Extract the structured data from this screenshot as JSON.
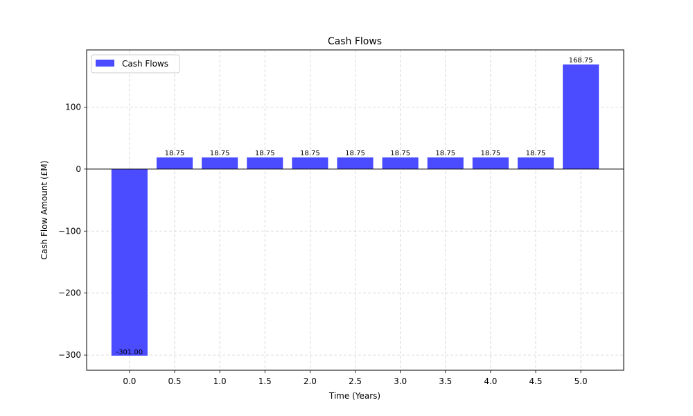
{
  "chart_data": {
    "type": "bar",
    "title": "Cash Flows",
    "xlabel": "Time (Years)",
    "ylabel": "Cash Flow Amount (£M)",
    "x": [
      0.0,
      0.5,
      1.0,
      1.5,
      2.0,
      2.5,
      3.0,
      3.5,
      4.0,
      4.5,
      5.0
    ],
    "x_tick_labels": [
      "0.0",
      "0.5",
      "1.0",
      "1.5",
      "2.0",
      "2.5",
      "3.0",
      "3.5",
      "4.0",
      "4.5",
      "5.0"
    ],
    "series": [
      {
        "name": "Cash Flows",
        "values": [
          -301.0,
          18.75,
          18.75,
          18.75,
          18.75,
          18.75,
          18.75,
          18.75,
          18.75,
          18.75,
          168.75
        ],
        "value_labels": [
          "-301.00",
          "18.75",
          "18.75",
          "18.75",
          "18.75",
          "18.75",
          "18.75",
          "18.75",
          "18.75",
          "18.75",
          "168.75"
        ],
        "color": "#4b4bff"
      }
    ],
    "xlim": [
      -0.475,
      5.475
    ],
    "ylim": [
      -324.5,
      192.25
    ],
    "y_ticks": [
      -300,
      -200,
      -100,
      0,
      100
    ],
    "y_tick_labels": [
      "−300",
      "−200",
      "−100",
      "0",
      "100"
    ],
    "bar_width": 0.4,
    "grid": true,
    "zero_line": true,
    "legend_position": "top-left"
  }
}
